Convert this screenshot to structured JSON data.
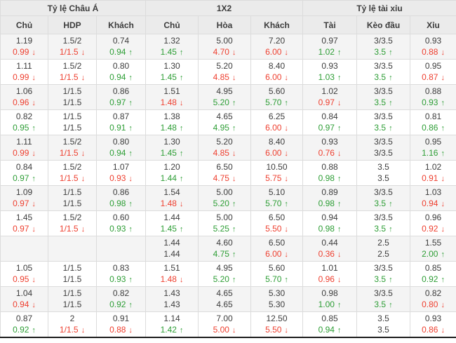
{
  "header": {
    "groups": [
      {
        "label": "Tỷ lệ Châu Á",
        "span": 3
      },
      {
        "label": "1X2",
        "span": 3
      },
      {
        "label": "Tỷ lệ tài xỉu",
        "span": 3
      }
    ],
    "columns": [
      "Chủ",
      "HDP",
      "Khách",
      "Chủ",
      "Hòa",
      "Khách",
      "Tài",
      "Kèo đầu",
      "Xỉu"
    ]
  },
  "colors": {
    "up": "#2e9e36",
    "down": "#ee3f2f",
    "neutral": "#3d3d3d",
    "header_bg": "#ebebeb",
    "row_alt_bg": "#f4f4f4",
    "border": "#dcdcdc",
    "bottom_bar": "#1c1c1c"
  },
  "icons": {
    "up-arrow": "↑",
    "down-arrow": "↓"
  },
  "rows": [
    {
      "cells": [
        {
          "t": "1.19",
          "b": "0.99",
          "d": "down"
        },
        {
          "t": "1.5/2",
          "b": "1/1.5",
          "d": "down"
        },
        {
          "t": "0.74",
          "b": "0.94",
          "d": "up"
        },
        {
          "t": "1.32",
          "b": "1.45",
          "d": "up"
        },
        {
          "t": "5.00",
          "b": "4.70",
          "d": "down"
        },
        {
          "t": "7.20",
          "b": "6.00",
          "d": "down"
        },
        {
          "t": "0.97",
          "b": "1.02",
          "d": "up"
        },
        {
          "t": "3/3.5",
          "b": "3.5",
          "d": "up"
        },
        {
          "t": "0.93",
          "b": "0.88",
          "d": "down"
        }
      ]
    },
    {
      "cells": [
        {
          "t": "1.11",
          "b": "0.99",
          "d": "down"
        },
        {
          "t": "1.5/2",
          "b": "1/1.5",
          "d": "down"
        },
        {
          "t": "0.80",
          "b": "0.94",
          "d": "up"
        },
        {
          "t": "1.30",
          "b": "1.45",
          "d": "up"
        },
        {
          "t": "5.20",
          "b": "4.85",
          "d": "down"
        },
        {
          "t": "8.40",
          "b": "6.00",
          "d": "down"
        },
        {
          "t": "0.93",
          "b": "1.03",
          "d": "up"
        },
        {
          "t": "3/3.5",
          "b": "3.5",
          "d": "up"
        },
        {
          "t": "0.95",
          "b": "0.87",
          "d": "down"
        }
      ]
    },
    {
      "cells": [
        {
          "t": "1.06",
          "b": "0.96",
          "d": "down"
        },
        {
          "t": "1/1.5",
          "b": "1/1.5",
          "d": "flat"
        },
        {
          "t": "0.86",
          "b": "0.97",
          "d": "up"
        },
        {
          "t": "1.51",
          "b": "1.48",
          "d": "down"
        },
        {
          "t": "4.95",
          "b": "5.20",
          "d": "up"
        },
        {
          "t": "5.60",
          "b": "5.70",
          "d": "up"
        },
        {
          "t": "1.02",
          "b": "0.97",
          "d": "down"
        },
        {
          "t": "3/3.5",
          "b": "3.5",
          "d": "up"
        },
        {
          "t": "0.88",
          "b": "0.93",
          "d": "up"
        }
      ]
    },
    {
      "cells": [
        {
          "t": "0.82",
          "b": "0.95",
          "d": "up"
        },
        {
          "t": "1/1.5",
          "b": "1/1.5",
          "d": "flat"
        },
        {
          "t": "0.87",
          "b": "0.91",
          "d": "up"
        },
        {
          "t": "1.38",
          "b": "1.48",
          "d": "up"
        },
        {
          "t": "4.65",
          "b": "4.95",
          "d": "up"
        },
        {
          "t": "6.25",
          "b": "6.00",
          "d": "down"
        },
        {
          "t": "0.84",
          "b": "0.97",
          "d": "up"
        },
        {
          "t": "3/3.5",
          "b": "3.5",
          "d": "up"
        },
        {
          "t": "0.81",
          "b": "0.86",
          "d": "up"
        }
      ]
    },
    {
      "cells": [
        {
          "t": "1.11",
          "b": "0.99",
          "d": "down"
        },
        {
          "t": "1.5/2",
          "b": "1/1.5",
          "d": "down"
        },
        {
          "t": "0.80",
          "b": "0.94",
          "d": "up"
        },
        {
          "t": "1.30",
          "b": "1.45",
          "d": "up"
        },
        {
          "t": "5.20",
          "b": "4.85",
          "d": "down"
        },
        {
          "t": "8.40",
          "b": "6.00",
          "d": "down"
        },
        {
          "t": "0.93",
          "b": "0.76",
          "d": "down"
        },
        {
          "t": "3/3.5",
          "b": "3/3.5",
          "d": "flat"
        },
        {
          "t": "0.95",
          "b": "1.16",
          "d": "up"
        }
      ]
    },
    {
      "cells": [
        {
          "t": "0.84",
          "b": "0.97",
          "d": "up"
        },
        {
          "t": "1.5/2",
          "b": "1/1.5",
          "d": "down"
        },
        {
          "t": "1.07",
          "b": "0.93",
          "d": "down"
        },
        {
          "t": "1.20",
          "b": "1.44",
          "d": "up"
        },
        {
          "t": "6.50",
          "b": "4.75",
          "d": "down"
        },
        {
          "t": "10.50",
          "b": "5.75",
          "d": "down"
        },
        {
          "t": "0.88",
          "b": "0.98",
          "d": "up"
        },
        {
          "t": "3.5",
          "b": "3.5",
          "d": "flat"
        },
        {
          "t": "1.02",
          "b": "0.91",
          "d": "down"
        }
      ]
    },
    {
      "cells": [
        {
          "t": "1.09",
          "b": "0.97",
          "d": "down"
        },
        {
          "t": "1/1.5",
          "b": "1/1.5",
          "d": "flat"
        },
        {
          "t": "0.86",
          "b": "0.98",
          "d": "up"
        },
        {
          "t": "1.54",
          "b": "1.48",
          "d": "down"
        },
        {
          "t": "5.00",
          "b": "5.20",
          "d": "up"
        },
        {
          "t": "5.10",
          "b": "5.70",
          "d": "up"
        },
        {
          "t": "0.89",
          "b": "0.98",
          "d": "up"
        },
        {
          "t": "3/3.5",
          "b": "3.5",
          "d": "up"
        },
        {
          "t": "1.03",
          "b": "0.94",
          "d": "down"
        }
      ]
    },
    {
      "cells": [
        {
          "t": "1.45",
          "b": "0.97",
          "d": "down"
        },
        {
          "t": "1.5/2",
          "b": "1/1.5",
          "d": "down"
        },
        {
          "t": "0.60",
          "b": "0.93",
          "d": "up"
        },
        {
          "t": "1.44",
          "b": "1.45",
          "d": "up"
        },
        {
          "t": "5.00",
          "b": "5.25",
          "d": "up"
        },
        {
          "t": "6.50",
          "b": "5.50",
          "d": "down"
        },
        {
          "t": "0.94",
          "b": "0.98",
          "d": "up"
        },
        {
          "t": "3/3.5",
          "b": "3.5",
          "d": "up"
        },
        {
          "t": "0.96",
          "b": "0.92",
          "d": "down"
        }
      ]
    },
    {
      "cells": [
        {
          "t": "",
          "b": "",
          "d": ""
        },
        {
          "t": "",
          "b": "",
          "d": ""
        },
        {
          "t": "",
          "b": "",
          "d": ""
        },
        {
          "t": "1.44",
          "b": "1.44",
          "d": "flat"
        },
        {
          "t": "4.60",
          "b": "4.75",
          "d": "up"
        },
        {
          "t": "6.50",
          "b": "6.00",
          "d": "down"
        },
        {
          "t": "0.44",
          "b": "0.36",
          "d": "down"
        },
        {
          "t": "2.5",
          "b": "2.5",
          "d": "flat"
        },
        {
          "t": "1.55",
          "b": "2.00",
          "d": "up"
        }
      ]
    },
    {
      "cells": [
        {
          "t": "1.05",
          "b": "0.95",
          "d": "down"
        },
        {
          "t": "1/1.5",
          "b": "1/1.5",
          "d": "flat"
        },
        {
          "t": "0.83",
          "b": "0.93",
          "d": "up"
        },
        {
          "t": "1.51",
          "b": "1.48",
          "d": "down"
        },
        {
          "t": "4.95",
          "b": "5.20",
          "d": "up"
        },
        {
          "t": "5.60",
          "b": "5.70",
          "d": "up"
        },
        {
          "t": "1.01",
          "b": "0.96",
          "d": "down"
        },
        {
          "t": "3/3.5",
          "b": "3.5",
          "d": "up"
        },
        {
          "t": "0.85",
          "b": "0.92",
          "d": "up"
        }
      ]
    },
    {
      "cells": [
        {
          "t": "1.04",
          "b": "0.94",
          "d": "down"
        },
        {
          "t": "1/1.5",
          "b": "1/1.5",
          "d": "flat"
        },
        {
          "t": "0.82",
          "b": "0.92",
          "d": "up"
        },
        {
          "t": "1.43",
          "b": "1.43",
          "d": "flat"
        },
        {
          "t": "4.65",
          "b": "4.65",
          "d": "flat"
        },
        {
          "t": "5.30",
          "b": "5.30",
          "d": "flat"
        },
        {
          "t": "0.98",
          "b": "1.00",
          "d": "up"
        },
        {
          "t": "3/3.5",
          "b": "3.5",
          "d": "up"
        },
        {
          "t": "0.82",
          "b": "0.80",
          "d": "down"
        }
      ]
    },
    {
      "cells": [
        {
          "t": "0.87",
          "b": "0.92",
          "d": "up"
        },
        {
          "t": "2",
          "b": "1/1.5",
          "d": "down"
        },
        {
          "t": "0.91",
          "b": "0.88",
          "d": "down"
        },
        {
          "t": "1.14",
          "b": "1.42",
          "d": "up"
        },
        {
          "t": "7.00",
          "b": "5.00",
          "d": "down"
        },
        {
          "t": "12.50",
          "b": "5.50",
          "d": "down"
        },
        {
          "t": "0.85",
          "b": "0.94",
          "d": "up"
        },
        {
          "t": "3.5",
          "b": "3.5",
          "d": "flat"
        },
        {
          "t": "0.93",
          "b": "0.86",
          "d": "down"
        }
      ]
    }
  ]
}
